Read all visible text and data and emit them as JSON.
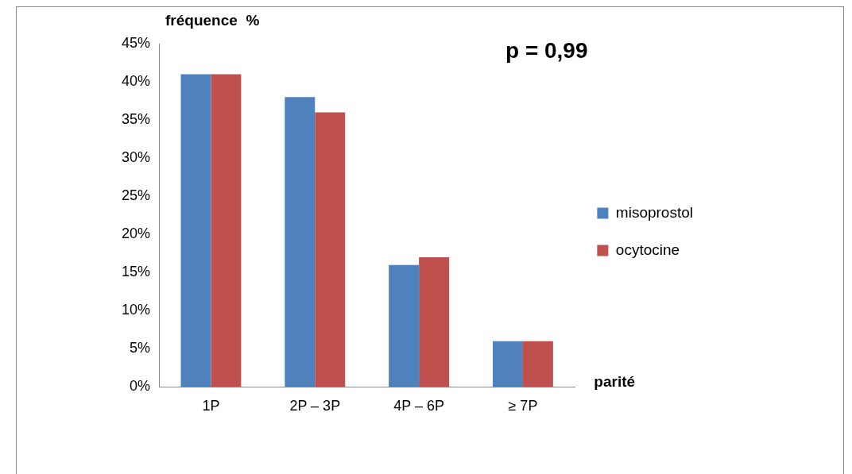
{
  "chart_data": {
    "type": "bar",
    "ylabel": "fréquence  %",
    "xlabel": "parité",
    "annotations": [
      "p = 0,99"
    ],
    "categories": [
      "1P",
      "2P – 3P",
      "4P – 6P",
      "≥ 7P"
    ],
    "series": [
      {
        "name": "misoprostol",
        "color": "#4f81bd",
        "values": [
          41,
          38,
          16,
          6
        ]
      },
      {
        "name": "ocytocine",
        "color": "#c0504d",
        "values": [
          41,
          36,
          17,
          6
        ]
      }
    ],
    "ylim": [
      0,
      45
    ],
    "yticks": [
      {
        "value": 0,
        "label": "0%"
      },
      {
        "value": 5,
        "label": "5%"
      },
      {
        "value": 10,
        "label": "10%"
      },
      {
        "value": 15,
        "label": "15%"
      },
      {
        "value": 20,
        "label": "20%"
      },
      {
        "value": 25,
        "label": "25%"
      },
      {
        "value": 30,
        "label": "30%"
      },
      {
        "value": 35,
        "label": "35%"
      },
      {
        "value": 40,
        "label": "40%"
      },
      {
        "value": 45,
        "label": "45%"
      }
    ],
    "grid": false,
    "legend": "right"
  }
}
